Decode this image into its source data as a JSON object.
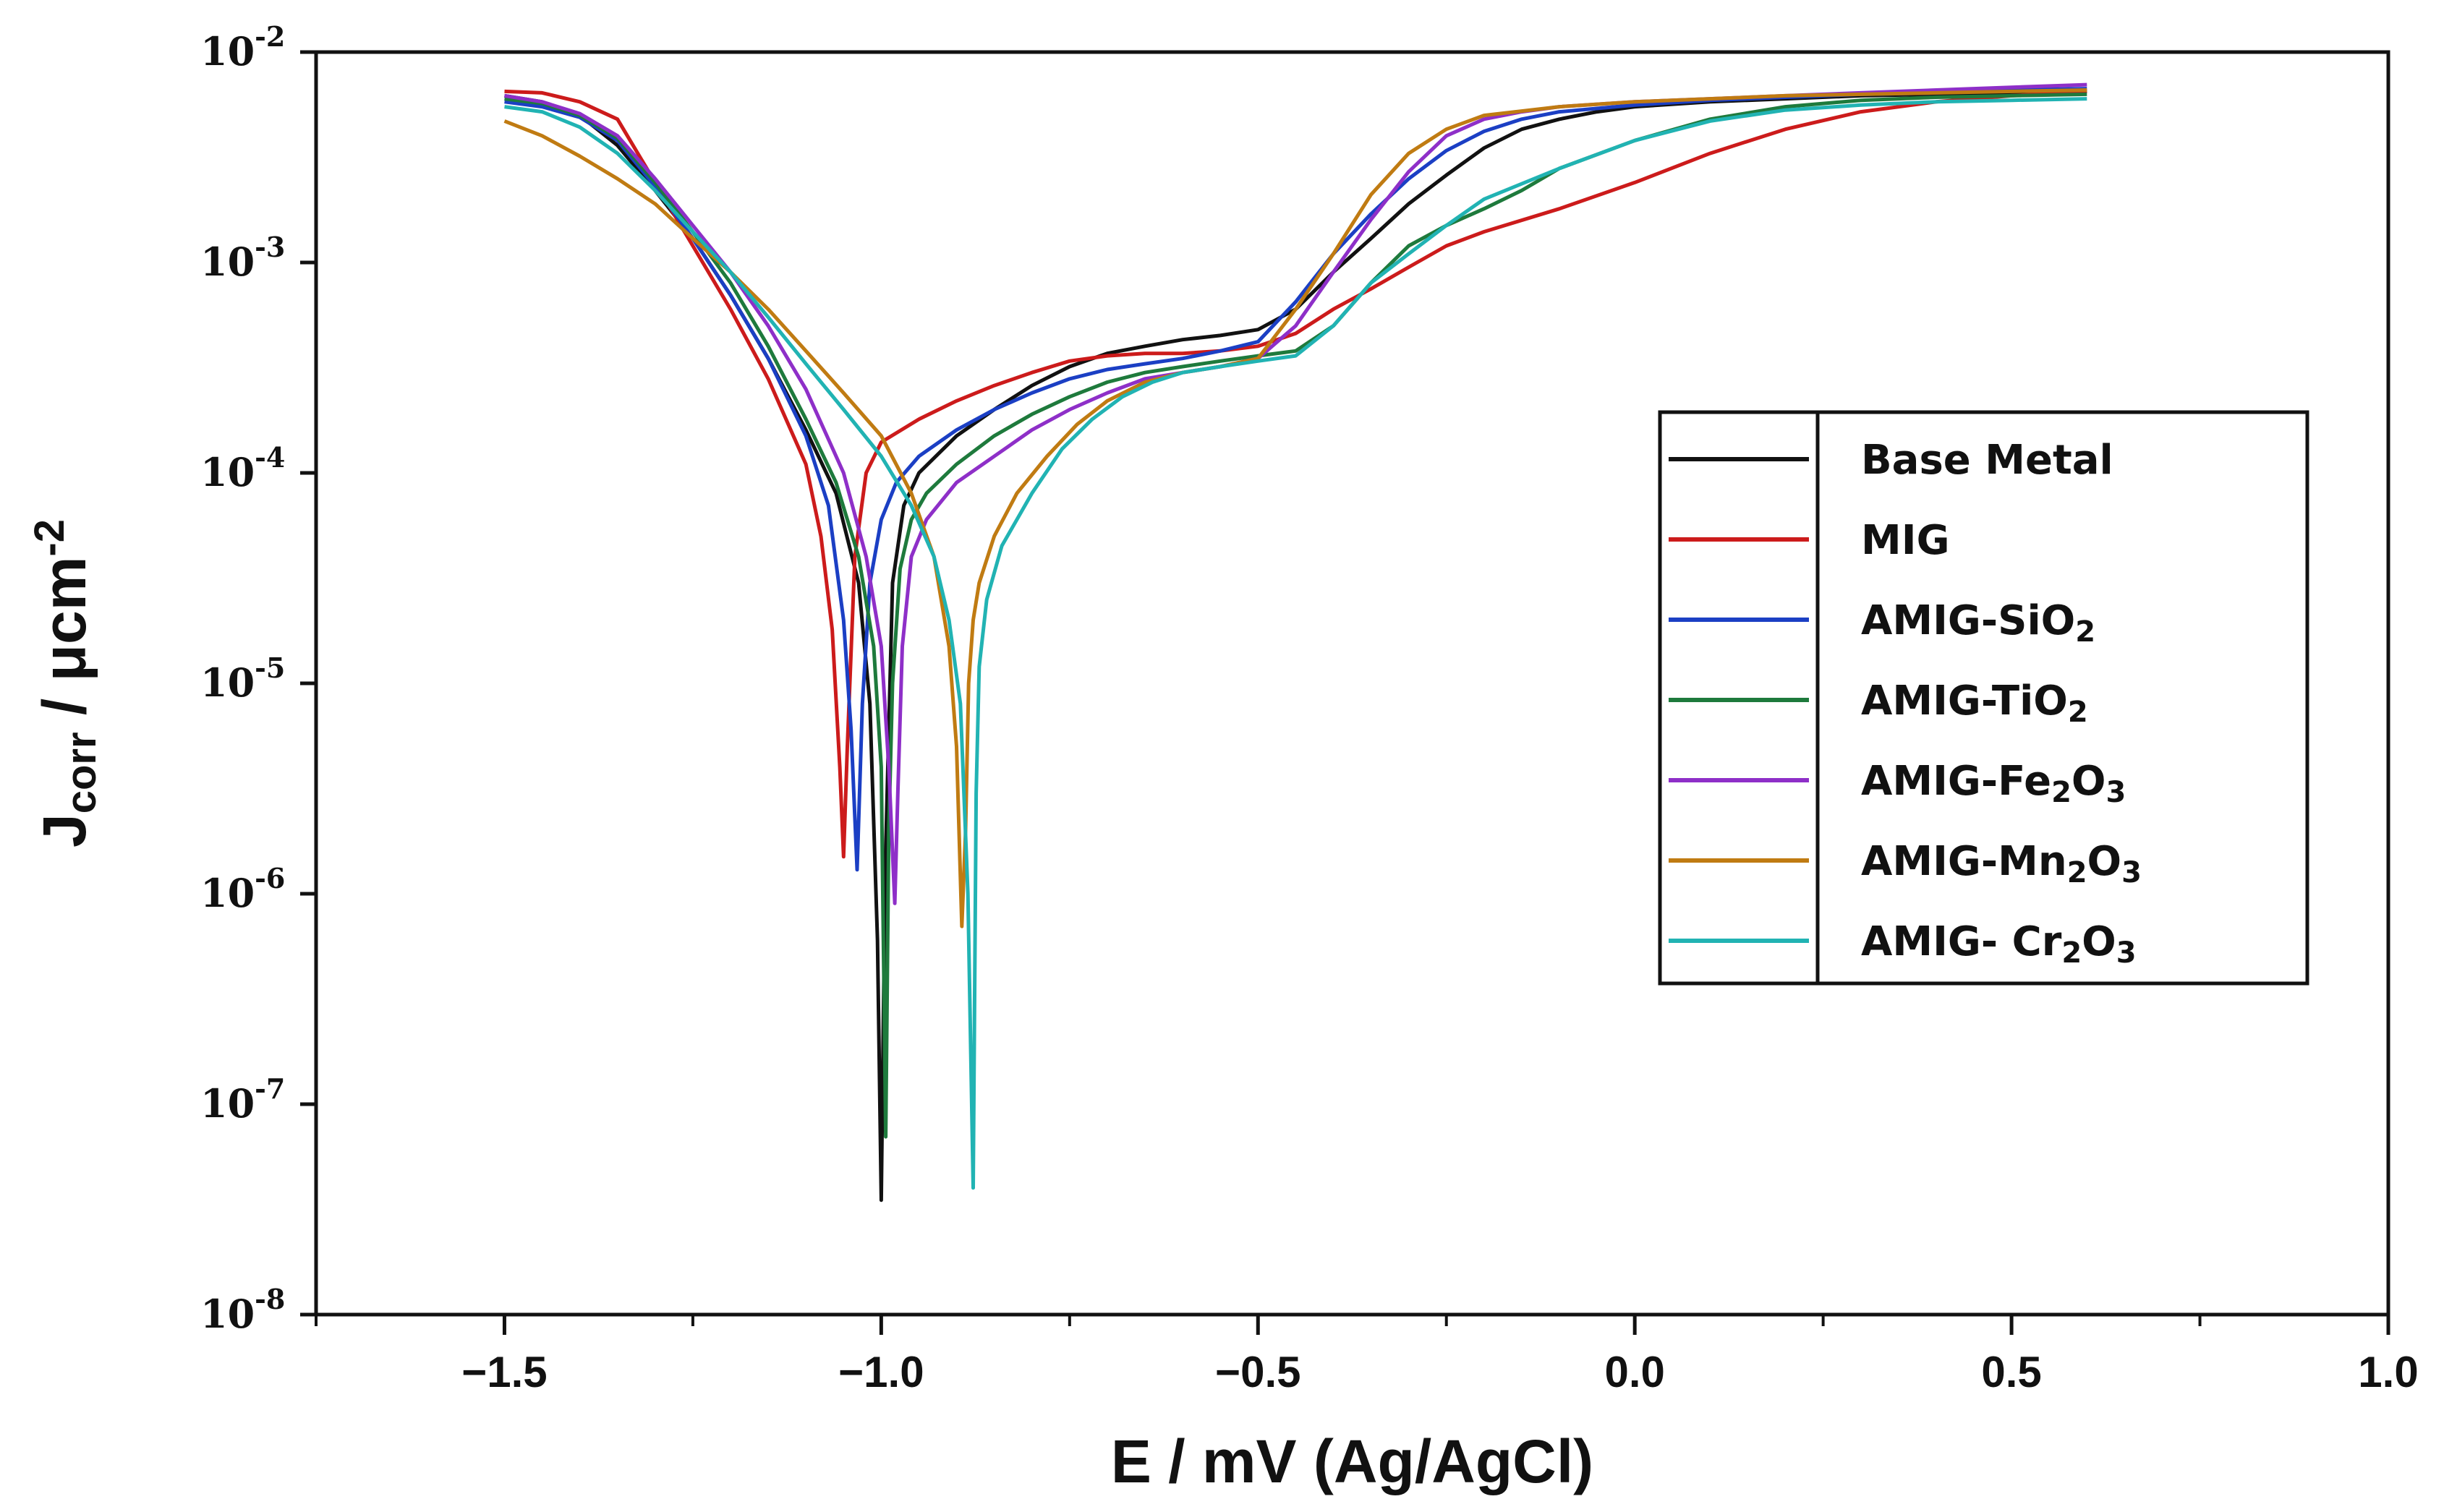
{
  "chart_data": {
    "type": "line",
    "title": "",
    "xlabel": "E / mV (Ag/AgCl)",
    "ylabel": "J",
    "ylabel_sub": "corr",
    "ylabel_unit": " / μcm",
    "ylabel_unit_exp": "-2",
    "xscale": "linear",
    "yscale": "log",
    "xlim": [
      -1.75,
      1.0
    ],
    "ylim": [
      1e-08,
      0.01
    ],
    "x_ticks": [
      -1.5,
      -1.0,
      -0.5,
      0.0,
      0.5,
      1.0
    ],
    "x_tick_labels": [
      "−1.5",
      "−1.0",
      "−0.5",
      "0.0",
      "0.5",
      "1.0"
    ],
    "y_ticks": [
      {
        "value": 0.01,
        "base": "10",
        "exp": "-2"
      },
      {
        "value": 0.001,
        "base": "10",
        "exp": "-3"
      },
      {
        "value": 0.0001,
        "base": "10",
        "exp": "-4"
      },
      {
        "value": 1e-05,
        "base": "10",
        "exp": "-5"
      },
      {
        "value": 1e-06,
        "base": "10",
        "exp": "-6"
      },
      {
        "value": 1e-07,
        "base": "10",
        "exp": "-7"
      },
      {
        "value": 1e-08,
        "base": "10",
        "exp": "-8"
      }
    ],
    "grid": false,
    "legend_position": "center-right",
    "series": [
      {
        "name": "Base Metal",
        "label_main": "Base Metal",
        "label_sub": "",
        "label_tail": "",
        "color": "#111111",
        "x": [
          -1.5,
          -1.45,
          -1.4,
          -1.35,
          -1.3,
          -1.25,
          -1.2,
          -1.15,
          -1.1,
          -1.06,
          -1.03,
          -1.015,
          -1.005,
          -1.0,
          -0.995,
          -0.985,
          -0.97,
          -0.95,
          -0.9,
          -0.85,
          -0.8,
          -0.75,
          -0.7,
          -0.65,
          -0.6,
          -0.55,
          -0.5,
          -0.45,
          -0.4,
          -0.35,
          -0.3,
          -0.25,
          -0.2,
          -0.15,
          -0.1,
          -0.05,
          0.0,
          0.1,
          0.2,
          0.3,
          0.4,
          0.5,
          0.6
        ],
        "y": [
          0.0062,
          0.0058,
          0.005,
          0.0036,
          0.0022,
          0.0013,
          0.0007,
          0.00035,
          0.00016,
          8e-05,
          3e-05,
          8e-06,
          6e-07,
          3.5e-08,
          1.2e-06,
          3e-05,
          7e-05,
          0.0001,
          0.00015,
          0.0002,
          0.00026,
          0.00032,
          0.00037,
          0.0004,
          0.00043,
          0.00045,
          0.00048,
          0.0006,
          0.0009,
          0.0013,
          0.0019,
          0.0026,
          0.0035,
          0.0043,
          0.0048,
          0.0052,
          0.0055,
          0.0058,
          0.006,
          0.0062,
          0.0063,
          0.0064,
          0.0065
        ]
      },
      {
        "name": "MIG",
        "label_main": "MIG",
        "label_sub": "",
        "label_tail": "",
        "color": "#cc1b1b",
        "x": [
          -1.5,
          -1.45,
          -1.4,
          -1.35,
          -1.3,
          -1.25,
          -1.2,
          -1.15,
          -1.1,
          -1.08,
          -1.065,
          -1.055,
          -1.05,
          -1.045,
          -1.035,
          -1.02,
          -1.0,
          -0.95,
          -0.9,
          -0.85,
          -0.8,
          -0.75,
          -0.7,
          -0.65,
          -0.6,
          -0.55,
          -0.5,
          -0.45,
          -0.4,
          -0.35,
          -0.3,
          -0.25,
          -0.2,
          -0.1,
          0.0,
          0.1,
          0.2,
          0.3,
          0.4,
          0.5,
          0.6
        ],
        "y": [
          0.0065,
          0.0064,
          0.0058,
          0.0048,
          0.0024,
          0.0012,
          0.0006,
          0.00028,
          0.00011,
          5e-05,
          1.8e-05,
          4e-06,
          1.5e-06,
          5e-06,
          4e-05,
          0.0001,
          0.00014,
          0.00018,
          0.00022,
          0.00026,
          0.0003,
          0.00034,
          0.00036,
          0.00037,
          0.00037,
          0.00038,
          0.0004,
          0.00046,
          0.0006,
          0.00075,
          0.00095,
          0.0012,
          0.0014,
          0.0018,
          0.0024,
          0.0033,
          0.0043,
          0.0052,
          0.0058,
          0.0062,
          0.0065
        ]
      },
      {
        "name": "AMIG-SiO2",
        "label_main": "AMIG-SiO",
        "label_sub": "2",
        "label_tail": "",
        "color": "#1b3fc4",
        "x": [
          -1.5,
          -1.45,
          -1.4,
          -1.35,
          -1.3,
          -1.25,
          -1.2,
          -1.15,
          -1.1,
          -1.07,
          -1.05,
          -1.04,
          -1.032,
          -1.025,
          -1.015,
          -1.0,
          -0.98,
          -0.95,
          -0.9,
          -0.85,
          -0.8,
          -0.75,
          -0.7,
          -0.65,
          -0.6,
          -0.55,
          -0.5,
          -0.45,
          -0.4,
          -0.35,
          -0.3,
          -0.25,
          -0.2,
          -0.15,
          -0.1,
          0.0,
          0.1,
          0.2,
          0.3,
          0.4,
          0.5,
          0.6
        ],
        "y": [
          0.0058,
          0.0055,
          0.0049,
          0.0038,
          0.0023,
          0.0013,
          0.0007,
          0.00035,
          0.00015,
          7e-05,
          2e-05,
          6e-06,
          1.3e-06,
          8e-06,
          3e-05,
          6e-05,
          9e-05,
          0.00012,
          0.00016,
          0.0002,
          0.00024,
          0.00028,
          0.00031,
          0.00033,
          0.00035,
          0.00038,
          0.00042,
          0.00065,
          0.0011,
          0.0017,
          0.0025,
          0.0034,
          0.0042,
          0.0048,
          0.0052,
          0.0056,
          0.0059,
          0.0061,
          0.0063,
          0.0064,
          0.0066,
          0.0067
        ]
      },
      {
        "name": "AMIG-TiO2",
        "label_main": "AMIG-TiO",
        "label_sub": "2",
        "label_tail": "",
        "color": "#1e7a3c",
        "x": [
          -1.5,
          -1.45,
          -1.4,
          -1.35,
          -1.3,
          -1.25,
          -1.2,
          -1.15,
          -1.1,
          -1.06,
          -1.03,
          -1.01,
          -1.0,
          -0.994,
          -0.99,
          -0.985,
          -0.975,
          -0.96,
          -0.94,
          -0.9,
          -0.85,
          -0.8,
          -0.75,
          -0.7,
          -0.65,
          -0.6,
          -0.55,
          -0.5,
          -0.45,
          -0.4,
          -0.35,
          -0.3,
          -0.25,
          -0.2,
          -0.15,
          -0.1,
          0.0,
          0.1,
          0.2,
          0.3,
          0.4,
          0.5,
          0.6
        ],
        "y": [
          0.006,
          0.0057,
          0.005,
          0.0039,
          0.0024,
          0.0014,
          0.0008,
          0.0004,
          0.00018,
          9e-05,
          4e-05,
          1.5e-05,
          4e-06,
          7e-08,
          2e-06,
          1e-05,
          3.5e-05,
          6e-05,
          8e-05,
          0.00011,
          0.00015,
          0.00019,
          0.00023,
          0.00027,
          0.0003,
          0.00032,
          0.00034,
          0.00036,
          0.00038,
          0.0005,
          0.0008,
          0.0012,
          0.0015,
          0.0018,
          0.0022,
          0.0028,
          0.0038,
          0.0048,
          0.0055,
          0.0059,
          0.0061,
          0.0062,
          0.0063
        ]
      },
      {
        "name": "AMIG-Fe2O3",
        "label_main": "AMIG-Fe",
        "label_sub": "2",
        "label_tail": "O3",
        "color": "#8e2fc8",
        "x": [
          -1.5,
          -1.45,
          -1.4,
          -1.35,
          -1.3,
          -1.25,
          -1.2,
          -1.15,
          -1.1,
          -1.05,
          -1.02,
          -1.0,
          -0.99,
          -0.982,
          -0.978,
          -0.972,
          -0.96,
          -0.94,
          -0.9,
          -0.85,
          -0.8,
          -0.75,
          -0.7,
          -0.65,
          -0.6,
          -0.55,
          -0.5,
          -0.45,
          -0.4,
          -0.35,
          -0.3,
          -0.25,
          -0.2,
          -0.15,
          -0.1,
          0.0,
          0.1,
          0.2,
          0.3,
          0.4,
          0.5,
          0.6
        ],
        "y": [
          0.0062,
          0.0058,
          0.0051,
          0.004,
          0.0025,
          0.0015,
          0.0009,
          0.0005,
          0.00025,
          0.0001,
          4e-05,
          1.5e-05,
          4e-06,
          9e-07,
          3e-06,
          1.5e-05,
          4e-05,
          6e-05,
          9e-05,
          0.00012,
          0.00016,
          0.0002,
          0.00024,
          0.00028,
          0.0003,
          0.00032,
          0.00035,
          0.0005,
          0.0009,
          0.0016,
          0.0027,
          0.004,
          0.0048,
          0.0052,
          0.0055,
          0.0058,
          0.006,
          0.0062,
          0.0064,
          0.0066,
          0.0068,
          0.007
        ]
      },
      {
        "name": "AMIG-Mn2O3",
        "label_main": "AMIG-Mn",
        "label_sub": "2",
        "label_tail": "O3",
        "color": "#c07b12",
        "x": [
          -1.5,
          -1.45,
          -1.4,
          -1.35,
          -1.3,
          -1.25,
          -1.2,
          -1.15,
          -1.1,
          -1.05,
          -1.0,
          -0.96,
          -0.93,
          -0.91,
          -0.9,
          -0.893,
          -0.888,
          -0.884,
          -0.878,
          -0.87,
          -0.85,
          -0.82,
          -0.78,
          -0.74,
          -0.7,
          -0.65,
          -0.6,
          -0.55,
          -0.5,
          -0.45,
          -0.4,
          -0.35,
          -0.3,
          -0.25,
          -0.2,
          -0.1,
          0.0,
          0.1,
          0.2,
          0.3,
          0.4,
          0.5,
          0.6
        ],
        "y": [
          0.0047,
          0.004,
          0.0032,
          0.0025,
          0.0019,
          0.0013,
          0.0009,
          0.0006,
          0.00038,
          0.00024,
          0.00015,
          8e-05,
          4e-05,
          1.5e-05,
          5e-06,
          7e-07,
          2e-06,
          1e-05,
          2e-05,
          3e-05,
          5e-05,
          8e-05,
          0.00012,
          0.00017,
          0.00022,
          0.00027,
          0.0003,
          0.00032,
          0.00035,
          0.0006,
          0.0011,
          0.0021,
          0.0033,
          0.0043,
          0.005,
          0.0055,
          0.0058,
          0.006,
          0.0062,
          0.0063,
          0.0064,
          0.0065,
          0.0066
        ]
      },
      {
        "name": "AMIG- Cr2O3",
        "label_main": "AMIG- Cr",
        "label_sub": "2",
        "label_tail": "O3",
        "color": "#21b3b3",
        "x": [
          -1.5,
          -1.45,
          -1.4,
          -1.35,
          -1.3,
          -1.25,
          -1.2,
          -1.15,
          -1.1,
          -1.05,
          -1.0,
          -0.96,
          -0.93,
          -0.91,
          -0.895,
          -0.885,
          -0.878,
          -0.874,
          -0.87,
          -0.86,
          -0.84,
          -0.8,
          -0.76,
          -0.72,
          -0.68,
          -0.64,
          -0.6,
          -0.55,
          -0.5,
          -0.45,
          -0.4,
          -0.35,
          -0.3,
          -0.25,
          -0.2,
          -0.1,
          0.0,
          0.1,
          0.2,
          0.3,
          0.4,
          0.5,
          0.6
        ],
        "y": [
          0.0055,
          0.0052,
          0.0044,
          0.0033,
          0.0022,
          0.0014,
          0.0009,
          0.00055,
          0.00033,
          0.0002,
          0.00012,
          7e-05,
          4e-05,
          2e-05,
          8e-06,
          1e-06,
          4e-08,
          3e-06,
          1.2e-05,
          2.5e-05,
          4.5e-05,
          8e-05,
          0.00013,
          0.00018,
          0.00023,
          0.00027,
          0.0003,
          0.00032,
          0.00034,
          0.00036,
          0.0005,
          0.0008,
          0.0011,
          0.0015,
          0.002,
          0.0028,
          0.0038,
          0.0047,
          0.0053,
          0.0056,
          0.0058,
          0.0059,
          0.006
        ]
      }
    ]
  }
}
